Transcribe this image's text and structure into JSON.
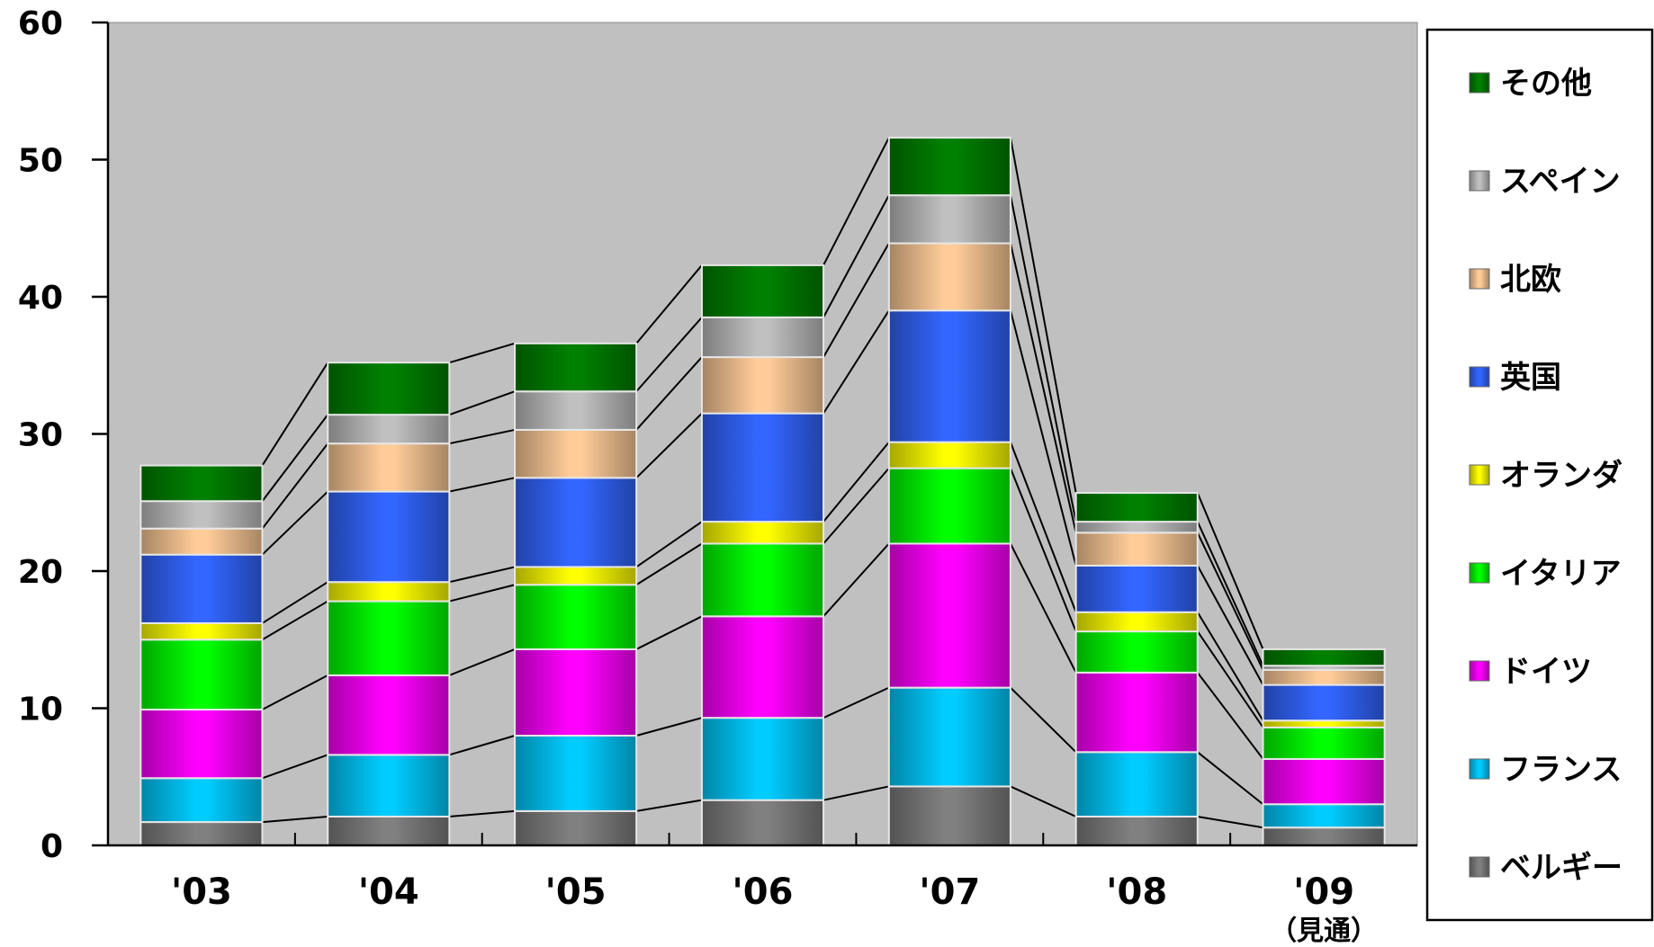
{
  "chart_data": {
    "type": "bar",
    "stacked": true,
    "categories": [
      "'03",
      "'04",
      "'05",
      "'06",
      "'07",
      "'08",
      "'09"
    ],
    "category_sublabels": [
      "",
      "",
      "",
      "",
      "",
      "",
      "（見通）"
    ],
    "ylim": [
      0,
      60
    ],
    "yticks": [
      0,
      10,
      20,
      30,
      40,
      50,
      60
    ],
    "grid": false,
    "plot_background": "#c0c0c0",
    "legend_position": "right",
    "series_connector_lines": true,
    "series": [
      {
        "name": "ベルギー",
        "color": "#808080",
        "values": [
          1.7,
          2.1,
          2.5,
          3.3,
          4.3,
          2.1,
          1.3
        ]
      },
      {
        "name": "フランス",
        "color": "#00ccff",
        "values": [
          3.2,
          4.5,
          5.5,
          6.0,
          7.2,
          4.7,
          1.7
        ]
      },
      {
        "name": "ドイツ",
        "color": "#ff00ff",
        "values": [
          5.0,
          5.8,
          6.3,
          7.4,
          10.5,
          5.8,
          3.3
        ]
      },
      {
        "name": "イタリア",
        "color": "#00ff00",
        "values": [
          5.1,
          5.4,
          4.7,
          5.3,
          5.5,
          3.0,
          2.3
        ]
      },
      {
        "name": "オランダ",
        "color": "#ffff00",
        "values": [
          1.2,
          1.4,
          1.3,
          1.6,
          1.9,
          1.4,
          0.5
        ]
      },
      {
        "name": "英国",
        "color": "#3366ff",
        "values": [
          5.0,
          6.6,
          6.5,
          7.9,
          9.6,
          3.4,
          2.6
        ]
      },
      {
        "name": "北欧",
        "color": "#ffcc99",
        "values": [
          1.9,
          3.5,
          3.5,
          4.1,
          4.9,
          2.4,
          1.1
        ]
      },
      {
        "name": "スペイン",
        "color": "#c0c0c0",
        "values": [
          2.0,
          2.1,
          2.8,
          2.9,
          3.5,
          0.8,
          0.3
        ]
      },
      {
        "name": "その他",
        "color": "#008000",
        "values": [
          2.6,
          3.8,
          3.5,
          3.8,
          4.2,
          2.1,
          1.2
        ]
      }
    ]
  }
}
